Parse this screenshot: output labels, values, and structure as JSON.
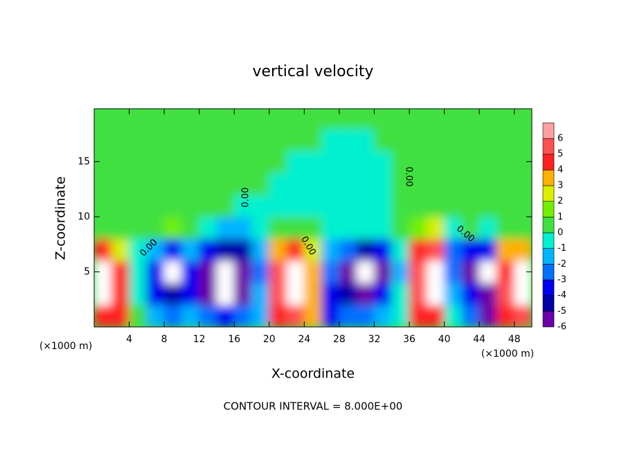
{
  "chart_data": {
    "type": "contour",
    "title": "vertical velocity",
    "x_label": "X-coordinate",
    "y_label": "Z-coordinate",
    "x_unit": "(×1000 m)",
    "footer": "CONTOUR INTERVAL = 8.000E+00",
    "xlim": [
      0,
      50
    ],
    "ylim": [
      0,
      19.8
    ],
    "xticks": [
      4,
      8,
      12,
      16,
      20,
      24,
      28,
      32,
      36,
      40,
      44,
      48
    ],
    "yticks": [
      5,
      10,
      15
    ],
    "contour_labels": [
      "0.00",
      "0.00",
      "0.00",
      "0.00",
      "0.00"
    ],
    "colorbar": {
      "levels": [
        -6,
        -5,
        -4,
        -3,
        -2,
        -1,
        0,
        1,
        2,
        3,
        4,
        5,
        6
      ],
      "colors": [
        "#6a00a8",
        "#0000a8",
        "#0000f0",
        "#0070ff",
        "#00b4ff",
        "#00f0d0",
        "#40e040",
        "#70f000",
        "#d8f000",
        "#ffb000",
        "#ff2020",
        "#ff5050",
        "#ffa0a0"
      ],
      "beyond_color": "#ffffff"
    },
    "z_rows_step": 2,
    "x_cols_step": 2,
    "z": [
      [
        5,
        5,
        1,
        -1,
        -2,
        -1,
        -2,
        -3,
        -2,
        -1,
        5,
        6,
        4,
        -3,
        -2,
        -2,
        -1,
        0,
        5,
        5,
        0,
        -2,
        -5,
        5,
        6
      ],
      [
        7,
        5,
        0,
        -3,
        -4,
        -3,
        -5,
        -7,
        -5,
        -1,
        6,
        7,
        4,
        -3,
        -4,
        -5,
        -3,
        0,
        6,
        7,
        -1,
        -3,
        -5,
        6,
        7
      ],
      [
        7,
        5,
        0,
        -3,
        -7,
        -3,
        -5,
        -7,
        -5,
        -2,
        6,
        7,
        4,
        -2,
        -5,
        -7,
        -5,
        -1,
        6,
        7,
        -2,
        -5,
        -7,
        5,
        7
      ],
      [
        5,
        3,
        0,
        -1,
        -3,
        -1,
        -3,
        -4,
        -4,
        -1,
        4,
        5,
        3,
        -1,
        -2,
        -4,
        -3,
        0,
        5,
        6,
        -2,
        -3,
        -3,
        4,
        4
      ],
      [
        1,
        0.5,
        0.5,
        1,
        2,
        0.5,
        0,
        -1,
        -1,
        0,
        0.5,
        0.5,
        0.5,
        0,
        0,
        0,
        0,
        0.5,
        2,
        3,
        0,
        0.5,
        0,
        0.5,
        1
      ],
      [
        0.5,
        0.5,
        0.5,
        0.5,
        1,
        0.5,
        0.5,
        0.5,
        0,
        0,
        0,
        0,
        0,
        0,
        0,
        0,
        0,
        0.5,
        1,
        1,
        0.5,
        0.5,
        0.5,
        0.5,
        0.5
      ],
      [
        0.5,
        0.5,
        0.5,
        0.5,
        0.5,
        0.5,
        0.5,
        0.5,
        0.5,
        0.5,
        0,
        0,
        0,
        0,
        0,
        0,
        0,
        0.5,
        0.5,
        0.5,
        0.5,
        0.5,
        0.5,
        0.5,
        0.5
      ],
      [
        0.5,
        0.5,
        0.5,
        0.5,
        0.5,
        0.5,
        0.5,
        0.5,
        0.5,
        0.5,
        0.5,
        0,
        0,
        0,
        0,
        0,
        0,
        0.5,
        0.5,
        0.5,
        0.5,
        0.5,
        0.5,
        0.5,
        0.5
      ],
      [
        0.5,
        0.5,
        0.5,
        0.5,
        0.5,
        0.5,
        0.5,
        0.5,
        0.5,
        0.5,
        0.5,
        0.5,
        0.5,
        0,
        0,
        0,
        0.5,
        0.5,
        0.5,
        0.5,
        0.5,
        0.5,
        0.5,
        0.5,
        0.5
      ],
      [
        0.5,
        0.5,
        0.5,
        0.5,
        0.5,
        0.5,
        0.5,
        0.5,
        0.5,
        0.5,
        0.5,
        0.5,
        0.5,
        0.5,
        0.5,
        0.5,
        0.5,
        0.5,
        0.5,
        0.5,
        0.5,
        0.5,
        0.5,
        0.5,
        0.5
      ]
    ]
  }
}
